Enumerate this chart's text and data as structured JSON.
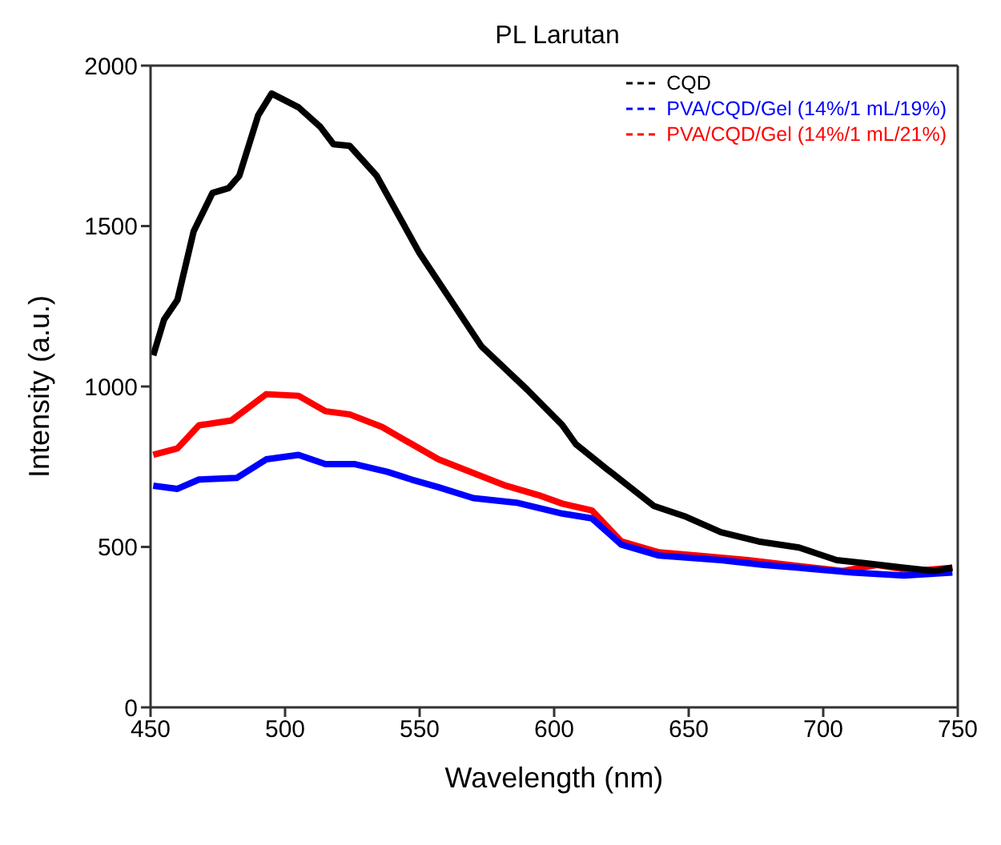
{
  "chart_data": {
    "type": "line",
    "title": "PL Larutan",
    "xlabel": "Wavelength (nm)",
    "ylabel": "Intensity (a.u.)",
    "xlim": [
      450,
      750
    ],
    "xticks": [
      450,
      500,
      550,
      600,
      650,
      700,
      750
    ],
    "ylim": [
      0,
      2000
    ],
    "yticks": [
      0,
      500,
      1000,
      1500,
      2000
    ],
    "grid": false,
    "legend": "top right",
    "marker": "none",
    "line_style": "solid",
    "series": [
      {
        "name": "CQD",
        "color": "#000000",
        "x": [
          451,
          455,
          460,
          466,
          473,
          479,
          483,
          490,
          495,
          505,
          513,
          518,
          524,
          534,
          550,
          573,
          590,
          603,
          608,
          620,
          637,
          649,
          662,
          676,
          691,
          705,
          716,
          730,
          741,
          748
        ],
        "values": [
          1097,
          1208,
          1270,
          1483,
          1603,
          1618,
          1657,
          1845,
          1913,
          1870,
          1810,
          1755,
          1750,
          1657,
          1415,
          1125,
          990,
          880,
          821,
          740,
          628,
          594,
          546,
          517,
          498,
          459,
          449,
          435,
          425,
          435
        ]
      },
      {
        "name": "PVA/CQD/Gel (14%/1 mL/19%)",
        "color": "#0000ff",
        "x": [
          451,
          460,
          468,
          482,
          493,
          505,
          515,
          526,
          538,
          547,
          557,
          570,
          586,
          603,
          614,
          625,
          639,
          662,
          678,
          691,
          711,
          730,
          748
        ],
        "values": [
          691,
          681,
          710,
          715,
          773,
          787,
          758,
          758,
          734,
          710,
          686,
          652,
          638,
          604,
          589,
          507,
          473,
          459,
          444,
          435,
          420,
          411,
          420
        ]
      },
      {
        "name": "PVA/CQD/Gel (14%/1 mL/21%)",
        "color": "#ff0000",
        "x": [
          451,
          460,
          468,
          480,
          493,
          505,
          515,
          524,
          536,
          547,
          557,
          567,
          582,
          594,
          603,
          614,
          625,
          639,
          653,
          672,
          691,
          707,
          720,
          734,
          748
        ],
        "values": [
          787,
          807,
          879,
          894,
          976,
          971,
          923,
          913,
          874,
          821,
          773,
          740,
          691,
          662,
          635,
          614,
          517,
          483,
          473,
          459,
          440,
          425,
          444,
          425,
          435
        ]
      }
    ]
  }
}
